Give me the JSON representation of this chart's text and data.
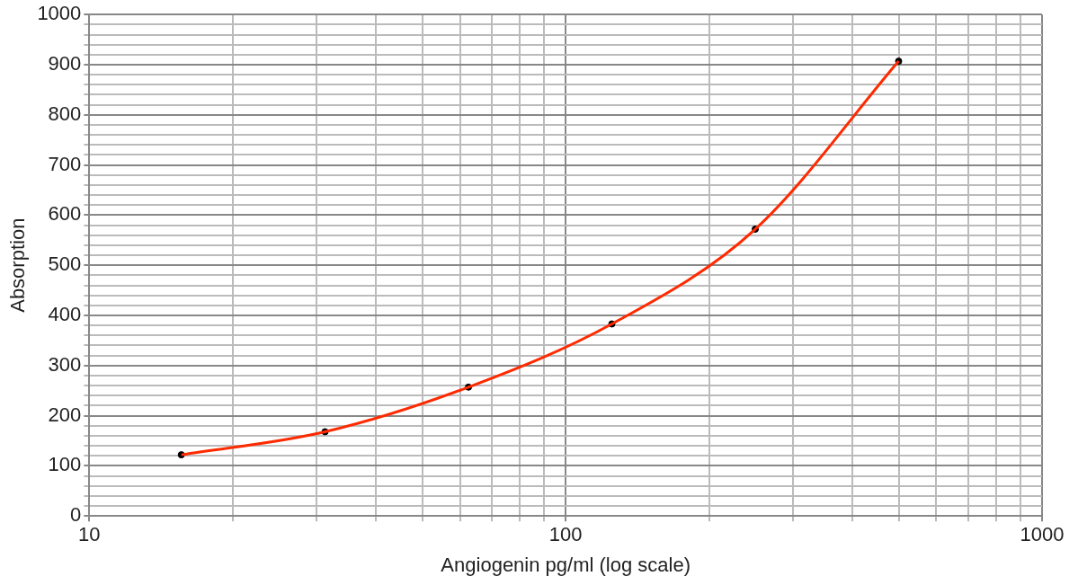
{
  "chart_data": {
    "type": "scatter",
    "xlabel": "Angiogenin pg/ml (log scale)",
    "ylabel": "Absorption",
    "log": "x",
    "grid": true,
    "legend": false,
    "xlim": [
      10,
      1000
    ],
    "xticks": [
      10,
      {
        "value": 20,
        "label": null
      },
      {
        "value": 30,
        "label": null
      },
      {
        "value": 40,
        "label": null
      },
      {
        "value": 50,
        "label": null
      },
      {
        "value": 60,
        "label": null
      },
      {
        "value": 70,
        "label": null
      },
      {
        "value": 80,
        "label": null
      },
      {
        "value": 90,
        "label": null
      },
      100,
      {
        "value": 200,
        "label": null
      },
      {
        "value": 300,
        "label": null
      },
      {
        "value": 400,
        "label": null
      },
      {
        "value": 500,
        "label": null
      },
      {
        "value": 600,
        "label": null
      },
      {
        "value": 700,
        "label": null
      },
      {
        "value": 800,
        "label": null
      },
      {
        "value": 900,
        "label": null
      },
      1000
    ],
    "ylim": [
      0,
      1000
    ],
    "yticks": [
      0,
      {
        "value": 20,
        "label": null
      },
      {
        "value": 40,
        "label": null
      },
      {
        "value": 60,
        "label": null
      },
      {
        "value": 80,
        "label": null
      },
      100,
      {
        "value": 120,
        "label": null
      },
      {
        "value": 140,
        "label": null
      },
      {
        "value": 160,
        "label": null
      },
      {
        "value": 180,
        "label": null
      },
      200,
      {
        "value": 220,
        "label": null
      },
      {
        "value": 240,
        "label": null
      },
      {
        "value": 260,
        "label": null
      },
      {
        "value": 280,
        "label": null
      },
      300,
      {
        "value": 320,
        "label": null
      },
      {
        "value": 340,
        "label": null
      },
      {
        "value": 360,
        "label": null
      },
      {
        "value": 380,
        "label": null
      },
      400,
      {
        "value": 420,
        "label": null
      },
      {
        "value": 440,
        "label": null
      },
      {
        "value": 460,
        "label": null
      },
      {
        "value": 480,
        "label": null
      },
      500,
      {
        "value": 520,
        "label": null
      },
      {
        "value": 540,
        "label": null
      },
      {
        "value": 560,
        "label": null
      },
      {
        "value": 580,
        "label": null
      },
      600,
      {
        "value": 620,
        "label": null
      },
      {
        "value": 640,
        "label": null
      },
      {
        "value": 660,
        "label": null
      },
      {
        "value": 680,
        "label": null
      },
      700,
      {
        "value": 720,
        "label": null
      },
      {
        "value": 740,
        "label": null
      },
      {
        "value": 760,
        "label": null
      },
      {
        "value": 780,
        "label": null
      },
      800,
      {
        "value": 820,
        "label": null
      },
      {
        "value": 840,
        "label": null
      },
      {
        "value": 860,
        "label": null
      },
      {
        "value": 880,
        "label": null
      },
      900,
      {
        "value": 920,
        "label": null
      },
      {
        "value": 940,
        "label": null
      },
      {
        "value": 960,
        "label": null
      },
      {
        "value": 980,
        "label": null
      },
      1000
    ],
    "series": [
      {
        "type": "line",
        "color": "#ff2a00",
        "marker": "none",
        "x": [
          15.6,
          31.25,
          62.5,
          125,
          250,
          500
        ],
        "values": [
          122,
          168,
          257,
          383,
          572,
          907
        ]
      },
      {
        "type": "scatter",
        "color": "#000000",
        "marker": "circle",
        "x": [
          15.6,
          31.25,
          62.5,
          125,
          250,
          500
        ],
        "values": [
          122,
          168,
          257,
          383,
          572,
          907
        ]
      }
    ]
  }
}
